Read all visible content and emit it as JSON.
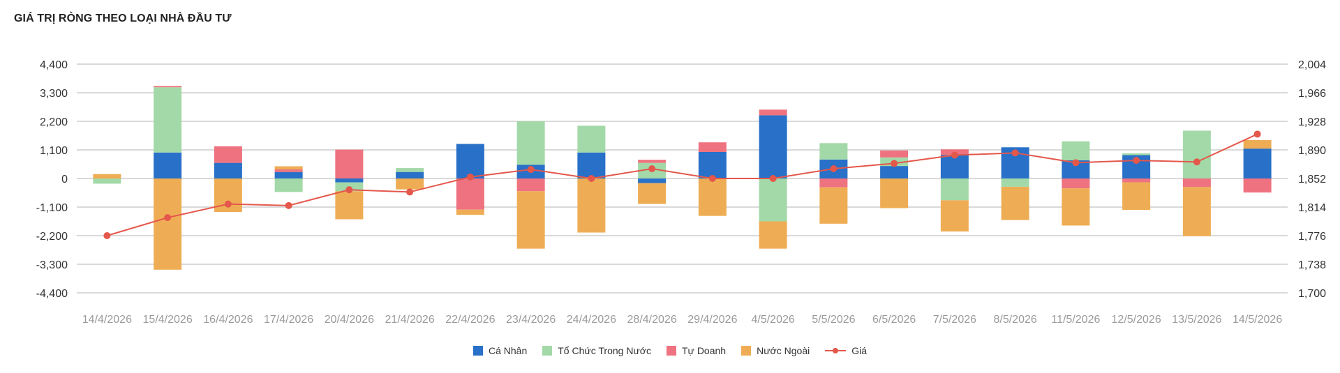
{
  "chart_data": {
    "type": "bar",
    "stacked": true,
    "title": "GIÁ TRỊ RÒNG THEO LOẠI NHÀ ĐẦU TƯ",
    "categories": [
      "14/4/2026",
      "15/4/2026",
      "16/4/2026",
      "17/4/2026",
      "20/4/2026",
      "21/4/2026",
      "22/4/2026",
      "23/4/2026",
      "24/4/2026",
      "28/4/2026",
      "29/4/2026",
      "4/5/2026",
      "5/5/2026",
      "6/5/2026",
      "7/5/2026",
      "8/5/2026",
      "11/5/2026",
      "12/5/2026",
      "13/5/2026",
      "14/5/2026"
    ],
    "series": [
      {
        "name": "Cá Nhân",
        "color": "#2870c8",
        "values": [
          0,
          1000,
          600,
          250,
          -150,
          250,
          1330,
          530,
          1000,
          -180,
          1020,
          2430,
          730,
          480,
          900,
          1200,
          700,
          900,
          0,
          1150
        ]
      },
      {
        "name": "Tổ Chức Trong Nước",
        "color": "#a3d9a8",
        "values": [
          -200,
          2510,
          0,
          -520,
          -340,
          150,
          0,
          1670,
          1030,
          600,
          0,
          -1650,
          630,
          330,
          -840,
          -320,
          730,
          70,
          1840,
          0
        ]
      },
      {
        "name": "Tự Doanh",
        "color": "#ee727f",
        "values": [
          0,
          50,
          640,
          100,
          1110,
          0,
          -1200,
          -490,
          0,
          120,
          370,
          220,
          -340,
          270,
          220,
          0,
          -380,
          -150,
          -330,
          -540
        ]
      },
      {
        "name": "Nước Ngoài",
        "color": "#eead55",
        "values": [
          170,
          -3510,
          -1290,
          120,
          -1080,
          -420,
          -200,
          -2210,
          -2080,
          -800,
          -1440,
          -1050,
          -1400,
          -1140,
          -1200,
          -1280,
          -1430,
          -1060,
          -1890,
          330
        ]
      }
    ],
    "line_series": {
      "name": "Giá",
      "color": "#e4574b",
      "axis": "right",
      "values": [
        1776,
        1800,
        1818,
        1816,
        1837,
        1834,
        1854,
        1864,
        1852,
        1865,
        1852,
        1852,
        1865,
        1872,
        1883,
        1886,
        1873,
        1876,
        1874,
        1911
      ]
    },
    "left_axis": {
      "ticks": [
        "4,400",
        "3,300",
        "2,200",
        "1,100",
        "0",
        "-1,100",
        "-2,200",
        "-3,300",
        "-4,400"
      ],
      "min": -4400,
      "max": 4400
    },
    "right_axis": {
      "ticks": [
        "2,004",
        "1,966",
        "1,928",
        "1,890",
        "1,852",
        "1,814",
        "1,776",
        "1,738",
        "1,700"
      ],
      "min": 1700,
      "max": 2004
    },
    "grid": true,
    "legend_position": "bottom"
  }
}
